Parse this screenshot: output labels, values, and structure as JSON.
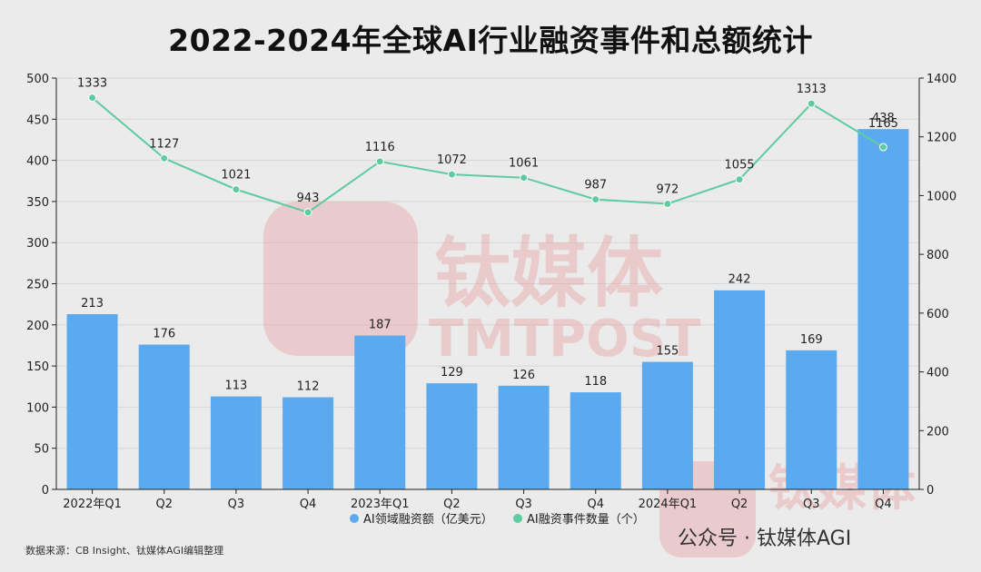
{
  "title": "2022-2024年全球AI行业融资事件和总额统计",
  "source": "数据来源：CB Insight、钛媒体AGI编辑整理",
  "watermark": {
    "brand_cn": "钛媒体",
    "brand_en": "TMTPOST",
    "wechat_text": "公众号 · 钛媒体AGI"
  },
  "chart_data": {
    "type": "bar",
    "title": "2022-2024年全球AI行业融资事件和总额统计",
    "categories": [
      "2022年Q1",
      "Q2",
      "Q3",
      "Q4",
      "2023年Q1",
      "Q2",
      "Q3",
      "Q4",
      "2024年Q1",
      "Q2",
      "Q3",
      "Q4"
    ],
    "series": [
      {
        "name": "AI领域融资额（亿美元）",
        "type": "bar",
        "axis": "left",
        "values": [
          213,
          176,
          113,
          112,
          187,
          129,
          126,
          118,
          155,
          242,
          169,
          438
        ]
      },
      {
        "name": "AI融资事件数量（个）",
        "type": "line",
        "axis": "right",
        "values": [
          1333,
          1127,
          1021,
          943,
          1116,
          1072,
          1061,
          987,
          972,
          1055,
          1313,
          1165
        ]
      }
    ],
    "y_left": {
      "min": 0,
      "max": 500,
      "ticks": [
        0,
        50,
        100,
        150,
        200,
        250,
        300,
        350,
        400,
        450,
        500
      ]
    },
    "y_right": {
      "min": 0,
      "max": 1400,
      "ticks": [
        0,
        200,
        400,
        600,
        800,
        1000,
        1200,
        1400
      ]
    },
    "grid": true,
    "legend": "bottom-center",
    "colors": {
      "bar": "#5aaaf0",
      "line": "#5ecba1"
    }
  }
}
